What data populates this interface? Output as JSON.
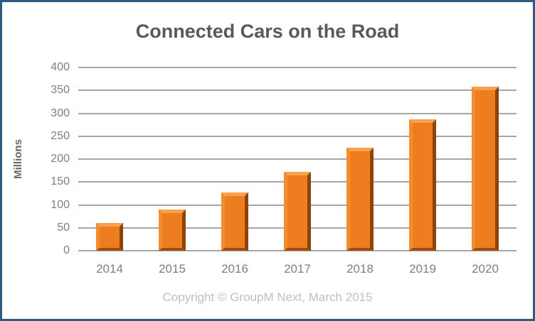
{
  "window": {
    "background": "#FFFFFF",
    "frame_border_color": "#2E5A7D"
  },
  "title": "Connected Cars on the Road",
  "footer": {
    "copyright": "Copyright © GroupM Next, March 2015"
  },
  "chart_data": {
    "type": "bar",
    "title": "Connected Cars on the Road",
    "categories": [
      "2014",
      "2015",
      "2016",
      "2017",
      "2018",
      "2019",
      "2020"
    ],
    "values": [
      60,
      90,
      127,
      172,
      225,
      287,
      358
    ],
    "xlabel": "",
    "ylabel": "Millions",
    "ylim": [
      0,
      400
    ],
    "ytick_step": 50,
    "grid": true,
    "legend": "none",
    "colors": {
      "bar": "#ED7D1F",
      "bar_bevel_top": "#F9A14F",
      "bar_bevel_left": "#F18C2F",
      "bar_bevel_right": "#8E4409",
      "bar_bevel_bottom": "#9C4E10",
      "gridline": "#A6A6A6",
      "tick_text": "#7F7F7F",
      "axis_title_text": "#666666",
      "title_text": "#595959",
      "copyright_text": "#BFBFBF"
    }
  }
}
